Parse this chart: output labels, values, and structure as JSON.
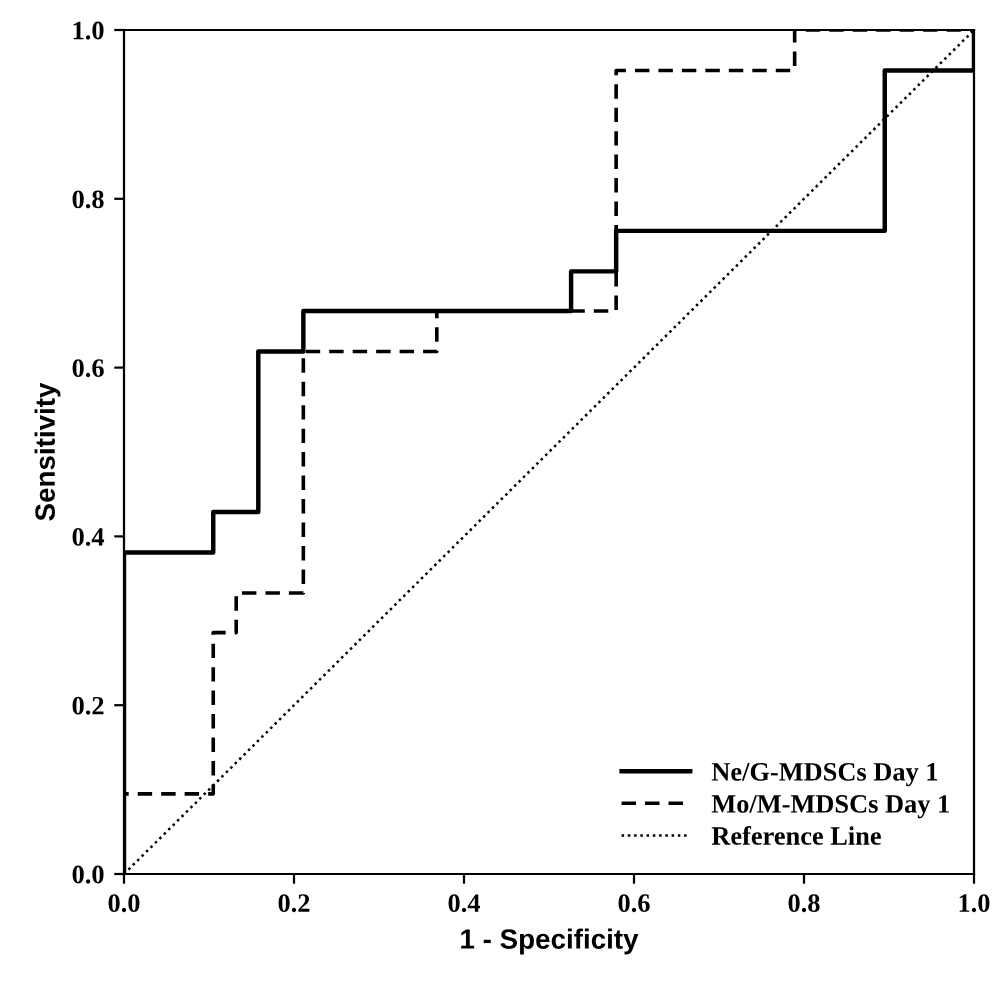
{
  "chart_data": {
    "type": "line",
    "xlabel": "1 - Specificity",
    "ylabel": "Sensitivity",
    "xlim": [
      0,
      1
    ],
    "ylim": [
      0,
      1
    ],
    "xticks": [
      {
        "value": 0,
        "label": "0.0"
      },
      {
        "value": 0.2,
        "label": "0.2"
      },
      {
        "value": 0.4,
        "label": "0.4"
      },
      {
        "value": 0.6,
        "label": "0.6"
      },
      {
        "value": 0.8,
        "label": "0.8"
      },
      {
        "value": 1,
        "label": "1.0"
      }
    ],
    "yticks": [
      {
        "value": 0,
        "label": "0.0"
      },
      {
        "value": 0.2,
        "label": "0.2"
      },
      {
        "value": 0.4,
        "label": "0.4"
      },
      {
        "value": 0.6,
        "label": "0.6"
      },
      {
        "value": 0.8,
        "label": "0.8"
      },
      {
        "value": 1,
        "label": "1.0"
      }
    ],
    "grid": false,
    "legend": "bottom right",
    "marker": "none",
    "series": [
      {
        "name": "Ne/G-MDSCs Day 1",
        "color": "#000000",
        "line_style": "solid",
        "x": [
          0,
          0,
          0.105,
          0.105,
          0.158,
          0.158,
          0.211,
          0.211,
          0.526,
          0.526,
          0.579,
          0.579,
          0.895,
          0.895,
          1,
          1
        ],
        "values": [
          0,
          0.381,
          0.381,
          0.429,
          0.429,
          0.619,
          0.619,
          0.667,
          0.667,
          0.714,
          0.714,
          0.762,
          0.762,
          0.952,
          0.952,
          1
        ]
      },
      {
        "name": "Mo/M-MDSCs Day 1",
        "color": "#000000",
        "line_style": "dashed",
        "x": [
          0,
          0,
          0.105,
          0.105,
          0.132,
          0.132,
          0.211,
          0.211,
          0.368,
          0.368,
          0.579,
          0.579,
          0.789,
          0.789,
          1
        ],
        "values": [
          0,
          0.095,
          0.095,
          0.286,
          0.286,
          0.333,
          0.333,
          0.619,
          0.619,
          0.667,
          0.667,
          0.952,
          0.952,
          1,
          1
        ]
      },
      {
        "name": "Reference Line",
        "color": "#000000",
        "line_style": "dotted",
        "x": [
          0,
          1
        ],
        "values": [
          0,
          1
        ]
      }
    ]
  }
}
